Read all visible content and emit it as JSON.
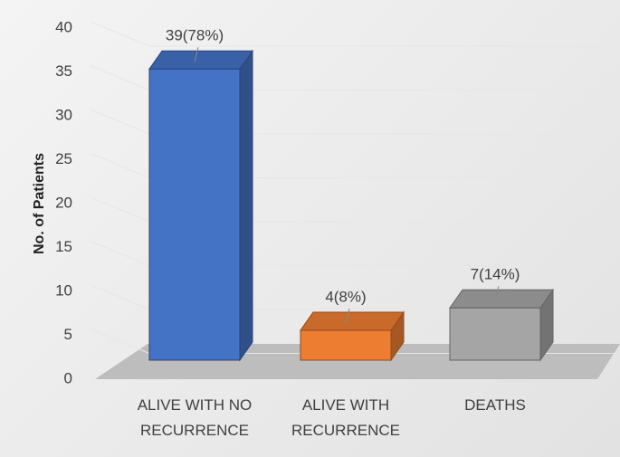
{
  "chart_data": {
    "type": "bar3d",
    "y_label": "No. of Patients",
    "categories": [
      "ALIVE WITH NO RECURRENCE",
      "ALIVE WITH RECURRENCE",
      "DEATHS"
    ],
    "values": [
      39,
      4,
      7
    ],
    "value_labels": [
      "39(78%)",
      "4(8%)",
      "7(14%)"
    ],
    "colors": [
      "#4472c4",
      "#ed7d31",
      "#a5a5a5"
    ],
    "ylim": [
      0,
      40
    ],
    "yticks": [
      0,
      5,
      10,
      15,
      20,
      25,
      30,
      35,
      40
    ],
    "grid": true
  }
}
